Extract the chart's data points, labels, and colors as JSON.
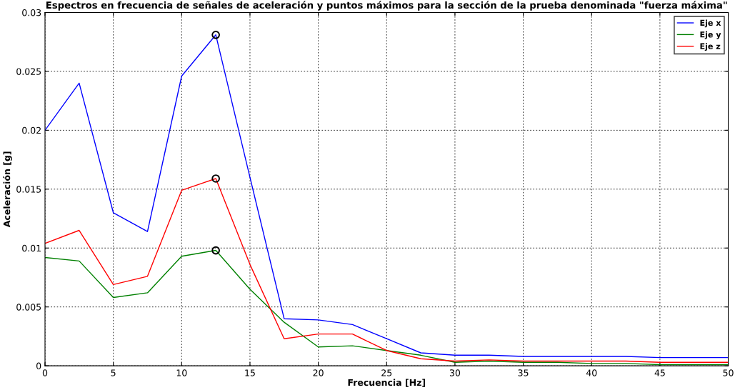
{
  "chart_data": {
    "type": "line",
    "title": "Espectros en frecuencia de señales de aceleración y puntos máximos para la sección de la prueba denominada \"fuerza máxima\"",
    "xlabel": "Frecuencia [Hz]",
    "ylabel": "Aceleración [g]",
    "x": [
      0,
      2.5,
      5,
      7.5,
      10,
      12.5,
      15,
      17.5,
      20,
      22.5,
      25,
      27.5,
      30,
      32.5,
      35,
      37.5,
      40,
      42.5,
      45,
      47.5,
      50
    ],
    "series": [
      {
        "name": "Eje x",
        "color": "#0000ff",
        "values": [
          0.02,
          0.024,
          0.013,
          0.0114,
          0.0246,
          0.0281,
          0.016,
          0.004,
          0.0039,
          0.0035,
          0.0023,
          0.0011,
          0.0009,
          0.0009,
          0.0008,
          0.0008,
          0.0008,
          0.0008,
          0.0007,
          0.0007,
          0.0007
        ]
      },
      {
        "name": "Eje y",
        "color": "#008000",
        "values": [
          0.0092,
          0.0089,
          0.0058,
          0.0062,
          0.0093,
          0.0098,
          0.0065,
          0.0037,
          0.0016,
          0.0017,
          0.0013,
          0.0009,
          0.0003,
          0.0004,
          0.0003,
          0.0003,
          0.0002,
          0.0002,
          0.0001,
          0.0001,
          0.0001
        ]
      },
      {
        "name": "Eje z",
        "color": "#ff0000",
        "values": [
          0.0104,
          0.0115,
          0.0069,
          0.0076,
          0.0149,
          0.0159,
          0.0086,
          0.0023,
          0.0027,
          0.0027,
          0.0013,
          0.0006,
          0.0004,
          0.0005,
          0.0004,
          0.0004,
          0.0004,
          0.0004,
          0.0003,
          0.0003,
          0.0003
        ]
      },
      {
        "type": "scatter",
        "color": "#000000",
        "marker": "circle",
        "values": [
          null,
          null,
          null,
          null,
          null,
          0.0281,
          null,
          null,
          null,
          null,
          null,
          null,
          null,
          null,
          null,
          null,
          null,
          null,
          null,
          null,
          null
        ]
      },
      {
        "type": "scatter",
        "color": "#000000",
        "marker": "circle",
        "values": [
          null,
          null,
          null,
          null,
          null,
          0.0159,
          null,
          null,
          null,
          null,
          null,
          null,
          null,
          null,
          null,
          null,
          null,
          null,
          null,
          null,
          null
        ]
      },
      {
        "type": "scatter",
        "color": "#000000",
        "marker": "circle",
        "values": [
          null,
          null,
          null,
          null,
          null,
          0.0098,
          null,
          null,
          null,
          null,
          null,
          null,
          null,
          null,
          null,
          null,
          null,
          null,
          null,
          null,
          null
        ]
      }
    ],
    "xlim": [
      0,
      50
    ],
    "xticks": [
      0,
      5,
      10,
      15,
      20,
      25,
      30,
      35,
      40,
      45,
      50
    ],
    "ylim": [
      0,
      0.03
    ],
    "yticks": [
      0,
      0.005,
      0.01,
      0.015,
      0.02,
      0.025,
      0.03
    ],
    "grid": true,
    "legend": "top right",
    "marker": "none",
    "line_style": "solid"
  }
}
